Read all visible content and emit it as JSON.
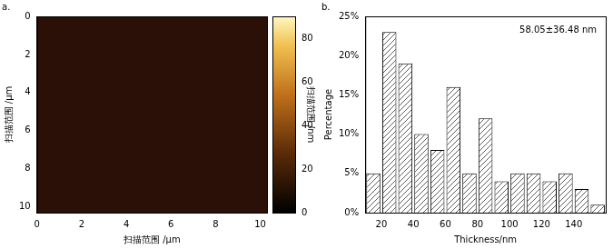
{
  "chart_data": [
    {
      "type": "heatmap",
      "title": "a.",
      "x_label": "扫描范围 /μm",
      "y_label": "扫描范围 /μm",
      "xlim": [
        0,
        10.3
      ],
      "xticks": [
        0,
        2,
        4,
        6,
        8,
        10
      ],
      "ylim": [
        10.3,
        0
      ],
      "yticks": [
        0,
        2,
        4,
        6,
        8,
        10
      ],
      "grid": false,
      "colorbar": {
        "label": "扫描范围 /nm",
        "range": [
          0,
          90
        ],
        "ticks": [
          0,
          20,
          40,
          60,
          80
        ]
      }
    },
    {
      "type": "histogram",
      "title": "b.",
      "x_label": "Thickness/nm",
      "y_label": "Percentage",
      "bins": [
        10,
        20,
        30,
        40,
        50,
        60,
        70,
        80,
        90,
        100,
        110,
        120,
        130,
        140,
        150,
        160
      ],
      "values": [
        5,
        23,
        19,
        10,
        8,
        16,
        5,
        12,
        4,
        5,
        5,
        4,
        5,
        3,
        1
      ],
      "xlim": [
        10,
        160
      ],
      "xticks": [
        20,
        40,
        60,
        80,
        100,
        120,
        140
      ],
      "ylim": [
        0,
        25
      ],
      "yticks": [
        {
          "value": 0,
          "label": "0%"
        },
        {
          "value": 5,
          "label": "5%"
        },
        {
          "value": 10,
          "label": "10%"
        },
        {
          "value": 15,
          "label": "15%"
        },
        {
          "value": 20,
          "label": "20%"
        },
        {
          "value": 25,
          "label": "25%"
        }
      ],
      "grid": false,
      "annotations": [
        "58.05±36.48 nm"
      ]
    }
  ]
}
